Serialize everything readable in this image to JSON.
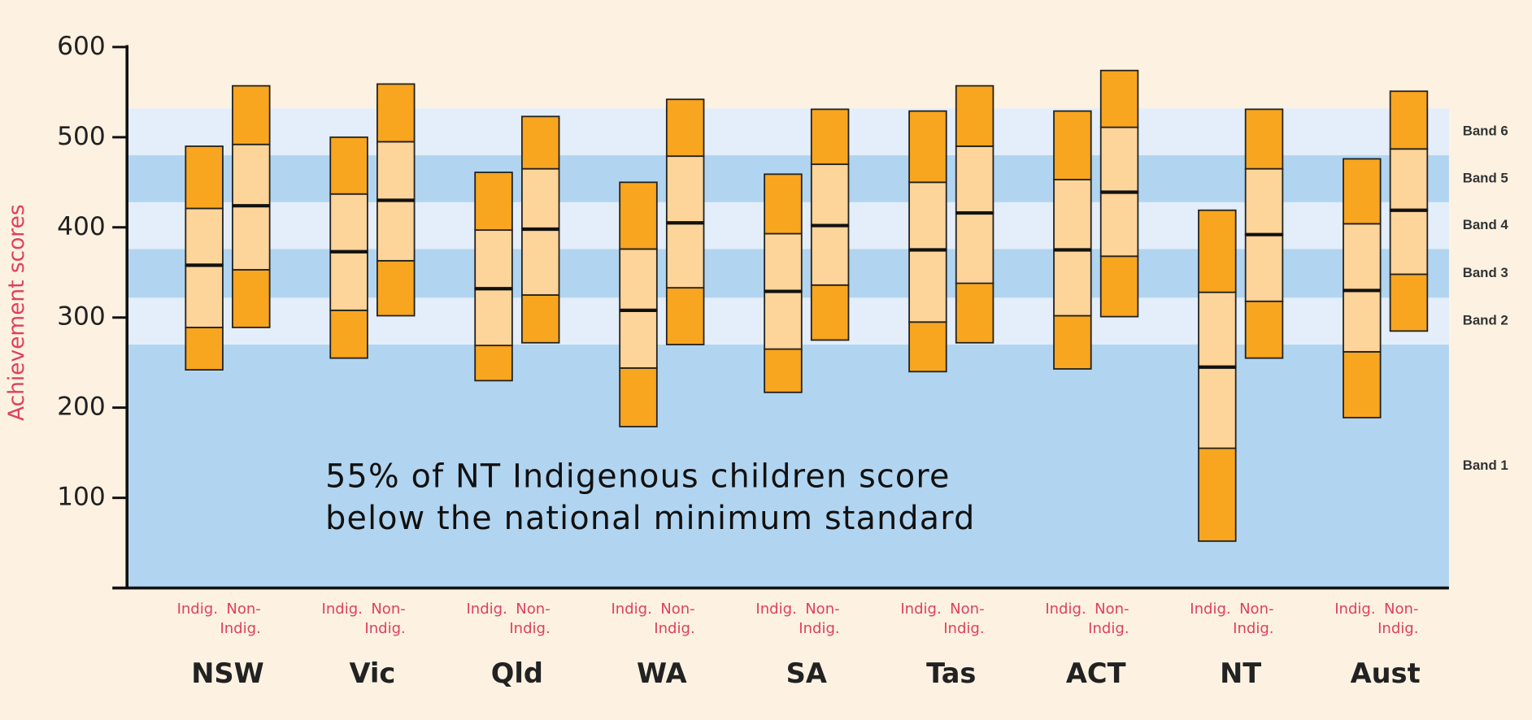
{
  "chart_data": {
    "type": "percentile-bar",
    "y_label": "Achievement scores",
    "annotation": [
      "55% of NT Indigenous children score",
      "below the national minimum standard"
    ],
    "categories": [
      "NSW",
      "Vic",
      "Qld",
      "WA",
      "SA",
      "Tas",
      "ACT",
      "NT",
      "Aust"
    ],
    "series": [
      {
        "name": "Indig.",
        "values": [
          [
            242,
            289,
            358,
            421,
            490
          ],
          [
            255,
            308,
            373,
            437,
            500
          ],
          [
            230,
            269,
            332,
            397,
            461
          ],
          [
            179,
            244,
            308,
            376,
            450
          ],
          [
            217,
            265,
            329,
            393,
            459
          ],
          [
            240,
            295,
            375,
            450,
            529
          ],
          [
            243,
            302,
            375,
            453,
            529
          ],
          [
            52,
            155,
            245,
            328,
            419
          ],
          [
            189,
            262,
            330,
            404,
            476
          ]
        ]
      },
      {
        "name": "Non-Indig.",
        "values": [
          [
            289,
            353,
            424,
            492,
            557
          ],
          [
            302,
            363,
            430,
            495,
            559
          ],
          [
            272,
            325,
            398,
            465,
            523
          ],
          [
            270,
            333,
            405,
            479,
            542
          ],
          [
            275,
            336,
            402,
            470,
            531
          ],
          [
            272,
            338,
            416,
            490,
            557
          ],
          [
            301,
            368,
            439,
            511,
            574
          ],
          [
            255,
            318,
            392,
            465,
            531
          ],
          [
            285,
            348,
            419,
            487,
            551
          ]
        ]
      }
    ],
    "colors": {
      "outer": "#f8a51f",
      "inner": "#fdd49a"
    },
    "bands": [
      {
        "name": "Band 1",
        "from": 0,
        "to": 270,
        "color": "#b1d5f0"
      },
      {
        "name": "Band 2",
        "from": 270,
        "to": 322,
        "color": "#e3eefa"
      },
      {
        "name": "Band 3",
        "from": 322,
        "to": 376,
        "color": "#b1d5f0"
      },
      {
        "name": "Band 4",
        "from": 376,
        "to": 428,
        "color": "#e3eefa"
      },
      {
        "name": "Band 5",
        "from": 428,
        "to": 480,
        "color": "#b1d5f0"
      },
      {
        "name": "Band 6",
        "from": 480,
        "to": 532,
        "color": "#e3eefa"
      }
    ],
    "ylim": [
      0,
      600
    ],
    "yticks": [
      100,
      200,
      300,
      400,
      500,
      600
    ]
  }
}
